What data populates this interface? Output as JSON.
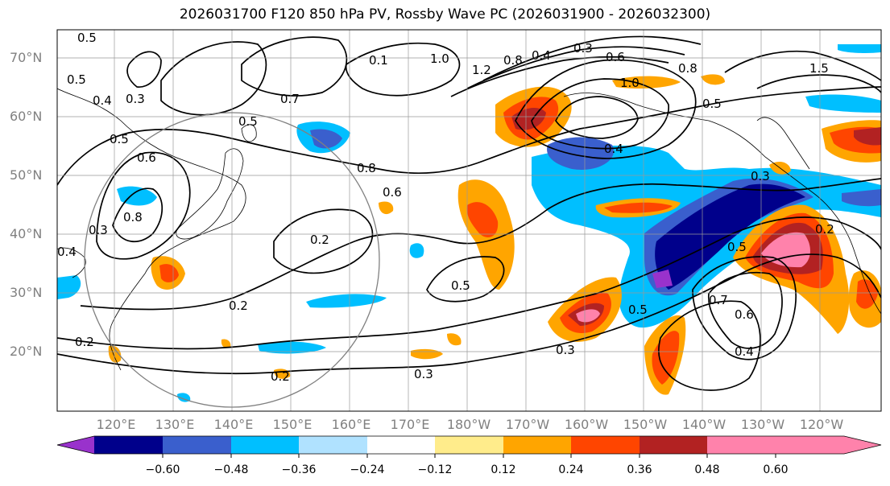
{
  "title": "2026031700 F120 850 hPa PV, Rossby Wave PC (2026031900 - 2026032300)",
  "lat_labels": [
    "70°N",
    "60°N",
    "50°N",
    "40°N",
    "30°N",
    "20°N"
  ],
  "lon_labels": [
    "120°E",
    "130°E",
    "140°E",
    "150°E",
    "160°E",
    "170°E",
    "180°W",
    "170°W",
    "160°W",
    "150°W",
    "140°W",
    "130°W",
    "120°W"
  ],
  "contour_labels": [
    "0.5",
    "0.5",
    "0.4",
    "0.3",
    "0.5",
    "0.6",
    "0.8",
    "0.3",
    "0.4",
    "0.7",
    "0.5",
    "0.8",
    "0.6",
    "0.1",
    "1.0",
    "1.2",
    "0.8",
    "0.4",
    "0.3",
    "0.6",
    "1.0",
    "0.8",
    "0.5",
    "1.5",
    "0.4",
    "0.3",
    "0.2",
    "0.2",
    "0.5",
    "0.5",
    "0.5",
    "0.7",
    "0.6",
    "0.4",
    "0.3",
    "0.2",
    "0.2",
    "0.3",
    "0.2"
  ],
  "colorbar": {
    "ticks": [
      "−0.60",
      "−0.48",
      "−0.36",
      "−0.24",
      "−0.12",
      "0.12",
      "0.24",
      "0.36",
      "0.48",
      "0.60"
    ],
    "colors": [
      "#9932cc",
      "#00008b",
      "#3a5fcd",
      "#00bfff",
      "#b0e2ff",
      "#ffffff",
      "#ffec8b",
      "#ffa500",
      "#ff4500",
      "#b22222",
      "#ff82ab"
    ]
  }
}
